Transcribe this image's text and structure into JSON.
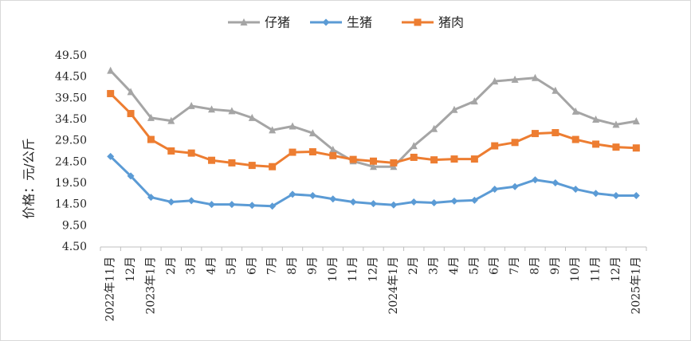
{
  "chart_data": {
    "type": "line",
    "title": "",
    "ylabel": "价格：元/公斤",
    "xlabel": "",
    "ylim": [
      4.5,
      49.5
    ],
    "yticks": [
      "4.50",
      "9.50",
      "14.50",
      "19.50",
      "24.50",
      "29.50",
      "34.50",
      "39.50",
      "44.50",
      "49.50"
    ],
    "grid": false,
    "legend_position": "top-center",
    "categories": [
      "2022年11月",
      "12月",
      "2023年1月",
      "2月",
      "3月",
      "4月",
      "5月",
      "6月",
      "7月",
      "8月",
      "9月",
      "10月",
      "11月",
      "12月",
      "2024年1月",
      "2月",
      "3月",
      "4月",
      "5月",
      "6月",
      "7月",
      "8月",
      "9月",
      "10月",
      "11月",
      "12月",
      "2025年1月"
    ],
    "series": [
      {
        "name": "仔猪",
        "color": "#a5a5a5",
        "marker": "triangle",
        "values": [
          46.0,
          41.0,
          34.9,
          34.2,
          37.7,
          36.9,
          36.5,
          34.9,
          32.0,
          32.9,
          31.3,
          27.4,
          24.7,
          23.4,
          23.4,
          28.3,
          32.3,
          36.8,
          38.8,
          43.5,
          43.9,
          44.3,
          41.3,
          36.4,
          34.5,
          33.3,
          34.1
        ]
      },
      {
        "name": "生猪",
        "color": "#5b9bd5",
        "marker": "diamond",
        "values": [
          25.8,
          21.2,
          16.2,
          15.1,
          15.4,
          14.5,
          14.5,
          14.3,
          14.1,
          16.9,
          16.6,
          15.8,
          15.1,
          14.7,
          14.4,
          15.1,
          14.9,
          15.3,
          15.5,
          18.1,
          18.7,
          20.3,
          19.6,
          18.1,
          17.1,
          16.6,
          16.6
        ]
      },
      {
        "name": "猪肉",
        "color": "#ed7d31",
        "marker": "square",
        "values": [
          40.6,
          35.9,
          29.8,
          27.1,
          26.6,
          24.9,
          24.3,
          23.7,
          23.4,
          26.8,
          26.9,
          26.0,
          25.1,
          24.7,
          24.3,
          25.6,
          25.0,
          25.2,
          25.2,
          28.3,
          29.1,
          31.2,
          31.4,
          29.8,
          28.7,
          28.0,
          27.8
        ]
      }
    ]
  }
}
